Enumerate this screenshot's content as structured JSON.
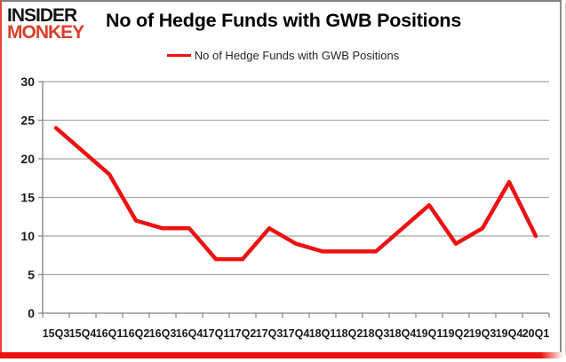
{
  "header": {
    "logo_line1": "INSIDER",
    "logo_line2": "MONKEY",
    "title": "No of Hedge Funds with GWB Positions"
  },
  "legend": {
    "label": "No of Hedge Funds with GWB Positions",
    "line_color": "#ee1111"
  },
  "chart_data": {
    "type": "line",
    "title": "No of Hedge Funds with GWB Positions",
    "categories": [
      "15Q3",
      "15Q4",
      "16Q1",
      "16Q2",
      "16Q3",
      "16Q4",
      "17Q1",
      "17Q2",
      "17Q3",
      "17Q4",
      "18Q1",
      "18Q2",
      "18Q3",
      "18Q4",
      "19Q1",
      "19Q2",
      "19Q3",
      "19Q4",
      "20Q1"
    ],
    "values": [
      24,
      21,
      18,
      12,
      11,
      11,
      7,
      7,
      11,
      9,
      8,
      8,
      8,
      11,
      14,
      9,
      11,
      17,
      10
    ],
    "xlabel": "",
    "ylabel": "",
    "ylim": [
      0,
      30
    ],
    "yticks": [
      0,
      5,
      10,
      15,
      20,
      25,
      30
    ],
    "grid": true,
    "legend_position": "top-center",
    "line_color": "#ee1111",
    "gridline_color": "#a6a6a6",
    "axis_color": "#808080",
    "label_color": "#1a1a1a"
  }
}
